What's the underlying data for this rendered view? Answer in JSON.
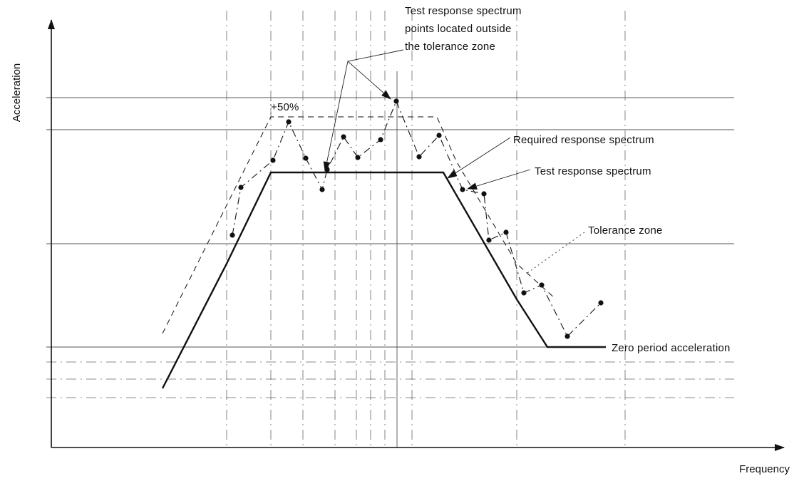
{
  "axes": {
    "y_title": "Acceleration",
    "x_title": "Frequency"
  },
  "labels": {
    "outside_line1": "Test response spectrum",
    "outside_line2": "points located outside",
    "outside_line3": "the tolerance zone",
    "plus50": "+50%",
    "required": "Required response spectrum",
    "test": "Test response spectrum",
    "tolerance": "Tolerance zone",
    "zpa": "Zero period acceleration"
  }
}
